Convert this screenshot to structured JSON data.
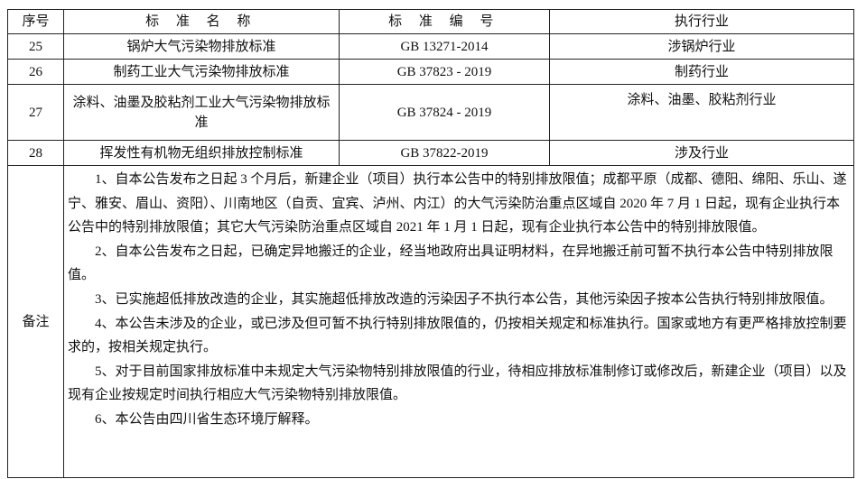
{
  "table": {
    "headers": [
      "序号",
      "标 准 名 称",
      "标 准 编 号",
      "执行行业"
    ],
    "rows": [
      {
        "no": "25",
        "name": "锅炉大气污染物排放标准",
        "code": "GB 13271-2014",
        "industry": "涉锅炉行业"
      },
      {
        "no": "26",
        "name": "制药工业大气污染物排放标准",
        "code": "GB 37823 - 2019",
        "industry": "制药行业"
      },
      {
        "no": "27",
        "name": "涂料、油墨及胶粘剂工业大气污染物排放标准",
        "code": "GB 37824 - 2019",
        "industry": "涂料、油墨、胶粘剂行业"
      },
      {
        "no": "28",
        "name": "挥发性有机物无组织排放控制标准",
        "code": "GB 37822-2019",
        "industry": "涉及行业"
      }
    ],
    "remarks_label": "备注",
    "remarks": [
      "1、自本公告发布之日起 3 个月后，新建企业（项目）执行本公告中的特别排放限值；成都平原（成都、德阳、绵阳、乐山、遂宁、雅安、眉山、资阳）、川南地区（自贡、宜宾、泸州、内江）的大气污染防治重点区域自 2020 年 7 月 1 日起，现有企业执行本公告中的特别排放限值；其它大气污染防治重点区域自 2021 年 1 月 1 日起，现有企业执行本公告中的特别排放限值。",
      "2、自本公告发布之日起，已确定异地搬迁的企业，经当地政府出具证明材料，在异地搬迁前可暂不执行本公告中特别排放限值。",
      "3、已实施超低排放改造的企业，其实施超低排放改造的污染因子不执行本公告，其他污染因子按本公告执行特别排放限值。",
      "4、本公告未涉及的企业，或已涉及但可暂不执行特别排放限值的，仍按相关规定和标准执行。国家或地方有更严格排放控制要求的，按相关规定执行。",
      "5、对于目前国家排放标准中未规定大气污染物特别排放限值的行业，待相应排放标准制修订或修改后，新建企业（项目）以及现有企业按规定时间执行相应大气污染物特别排放限值。",
      "6、本公告由四川省生态环境厅解释。"
    ]
  }
}
